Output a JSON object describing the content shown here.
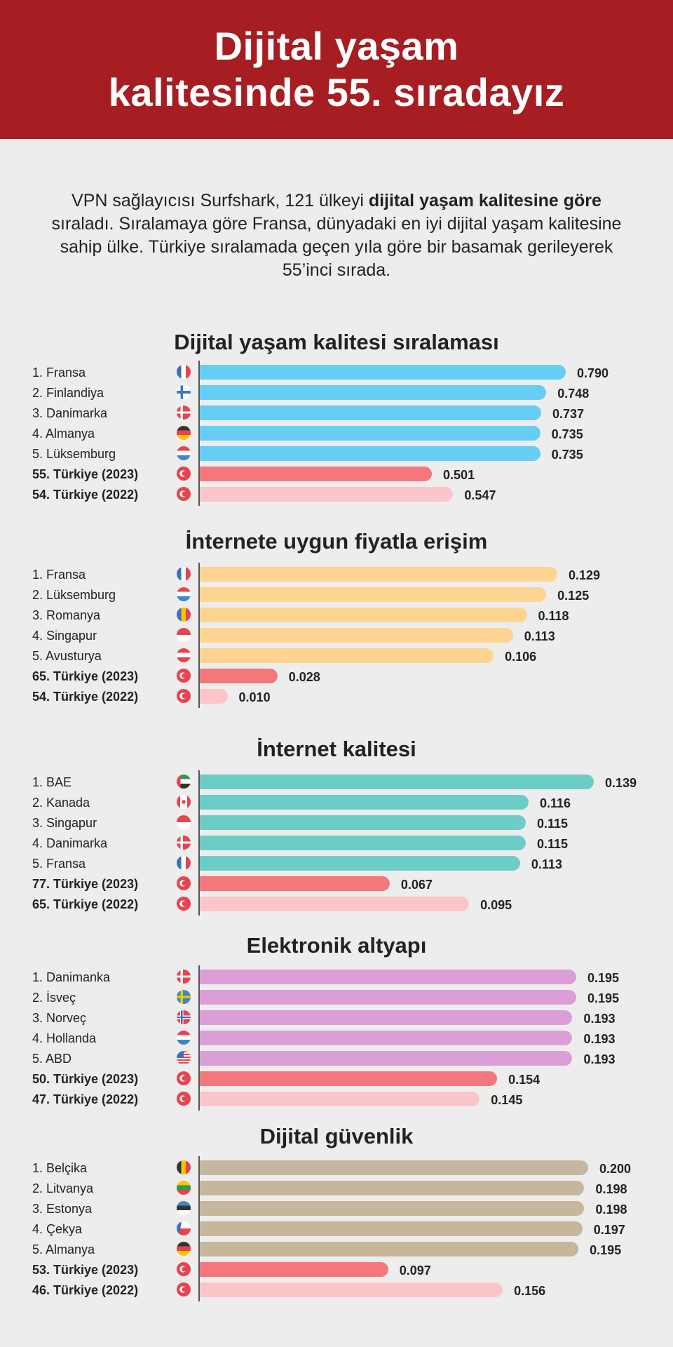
{
  "header": {
    "title_lines": [
      "Dijital yaşam",
      "kalitesinde 55. sıradayız"
    ],
    "background": "#a61e22"
  },
  "intro": {
    "part1": "VPN sağlayıcısı Surfshark, 121 ülkeyi ",
    "bold": "dijital yaşam kalitesine göre",
    "part2": " sıraladı. Sıralamaya göre Fransa, dünyadaki  en iyi dijital yaşam kalitesine sahip ülke. Türkiye sıralamada geçen yıla göre bir basamak gerileyerek 55’inci sırada."
  },
  "colors": {
    "turkiye_2023": "#f4777c",
    "turkiye_2022": "#fbc6ca"
  },
  "chart_data": [
    {
      "type": "bar",
      "orientation": "horizontal",
      "title": "Dijital yaşam kalitesi sıralaması",
      "color": "#66cdf4",
      "categories": [
        "1. Fransa",
        "2. Finlandiya",
        "3. Danimarka",
        "4. Almanya",
        "5. Lüksemburg",
        "55. Türkiye (2023)",
        "54. Türkiye (2022)"
      ],
      "flags": [
        "fr",
        "fi",
        "dk",
        "de",
        "nl",
        "tr",
        "tr"
      ],
      "values": [
        0.79,
        0.748,
        0.737,
        0.735,
        0.735,
        0.501,
        0.547
      ],
      "value_labels": [
        "0.790",
        "0.748",
        "0.737",
        "0.735",
        "0.735",
        "0.501",
        "0.547"
      ]
    },
    {
      "type": "bar",
      "orientation": "horizontal",
      "title": "İnternete uygun fiyatla erişim",
      "color": "#fdd491",
      "categories": [
        "1. Fransa",
        "2. Lüksemburg",
        "3. Romanya",
        "4. Singapur",
        "5. Avusturya",
        "65. Türkiye (2023)",
        "54. Türkiye (2022)"
      ],
      "flags": [
        "fr",
        "nl",
        "ro",
        "sg",
        "at",
        "tr",
        "tr"
      ],
      "values": [
        0.129,
        0.125,
        0.118,
        0.113,
        0.106,
        0.028,
        0.01
      ],
      "value_labels": [
        "0.129",
        "0.125",
        "0.118",
        "0.113",
        "0.106",
        "0.028",
        "0.010"
      ]
    },
    {
      "type": "bar",
      "orientation": "horizontal",
      "title": "İnternet kalitesi",
      "color": "#6ccdc6",
      "categories": [
        "1. BAE",
        "2. Kanada",
        "3. Singapur",
        "4. Danimarka",
        "5. Fransa",
        "77. Türkiye (2023)",
        "65. Türkiye (2022)"
      ],
      "flags": [
        "ae",
        "ca",
        "sg",
        "dk",
        "fr",
        "tr",
        "tr"
      ],
      "values": [
        0.139,
        0.116,
        0.115,
        0.115,
        0.113,
        0.067,
        0.095
      ],
      "value_labels": [
        "0.139",
        "0.116",
        "0.115",
        "0.115",
        "0.113",
        "0.067",
        "0.095"
      ]
    },
    {
      "type": "bar",
      "orientation": "horizontal",
      "title": "Elektronik altyapı",
      "color": "#dc9ed6",
      "categories": [
        "1. Danimanka",
        "2. İsveç",
        "3. Norveç",
        "4. Hollanda",
        "5. ABD",
        "50. Türkiye (2023)",
        "47. Türkiye (2022)"
      ],
      "flags": [
        "dk",
        "se",
        "no",
        "nl",
        "us",
        "tr",
        "tr"
      ],
      "values": [
        0.195,
        0.195,
        0.193,
        0.193,
        0.193,
        0.154,
        0.145
      ],
      "value_labels": [
        "0.195",
        "0.195",
        "0.193",
        "0.193",
        "0.193",
        "0.154",
        "0.145"
      ]
    },
    {
      "type": "bar",
      "orientation": "horizontal",
      "title": "Dijital güvenlik",
      "color": "#c6b69c",
      "categories": [
        "1. Belçika",
        "2. Litvanya",
        "3. Estonya",
        "4. Çekya",
        "5. Almanya",
        "53. Türkiye (2023)",
        "46. Türkiye (2022)"
      ],
      "flags": [
        "be",
        "lt",
        "ee",
        "cz",
        "de",
        "tr",
        "tr"
      ],
      "values": [
        0.2,
        0.198,
        0.198,
        0.197,
        0.195,
        0.097,
        0.156
      ],
      "value_labels": [
        "0.200",
        "0.198",
        "0.198",
        "0.197",
        "0.195",
        "0.097",
        "0.156"
      ]
    }
  ]
}
